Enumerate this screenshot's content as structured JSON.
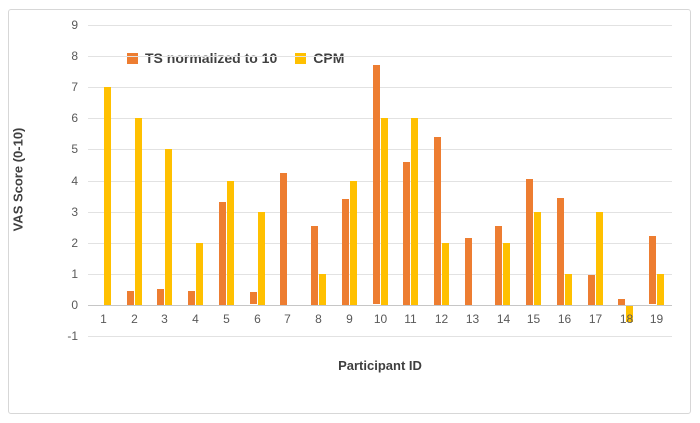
{
  "chart_data": {
    "type": "bar",
    "title": "",
    "xlabel": "Participant ID",
    "ylabel": "VAS Score (0-10)",
    "categories": [
      "1",
      "2",
      "3",
      "4",
      "5",
      "6",
      "7",
      "8",
      "9",
      "10",
      "11",
      "12",
      "13",
      "14",
      "15",
      "16",
      "17",
      "18",
      "19"
    ],
    "series": [
      {
        "name": "TS normalized to 10",
        "color": "#ED7D31",
        "values": [
          0,
          0.45,
          0.5,
          0.45,
          3.3,
          0.4,
          4.25,
          2.55,
          3.4,
          7.7,
          4.6,
          5.4,
          2.15,
          2.55,
          4.05,
          3.45,
          0.95,
          0.2,
          2.2
        ]
      },
      {
        "name": "CPM",
        "color": "#FFC000",
        "values": [
          7,
          6,
          5,
          2,
          4,
          3,
          0,
          1,
          4,
          6,
          6,
          2,
          0,
          2,
          3,
          1,
          3,
          -0.5,
          1
        ]
      }
    ],
    "ylim": [
      -1,
      9
    ],
    "ytick_step": 1,
    "grid": true,
    "legend_position": "inside-top-left"
  },
  "colors": {
    "gridline": "#e2e2e2",
    "zero_line": "#c6c6c6",
    "tick_text": "#595959",
    "axis_title_text": "#3f3f3f",
    "frame_border": "#d7d7d7"
  }
}
